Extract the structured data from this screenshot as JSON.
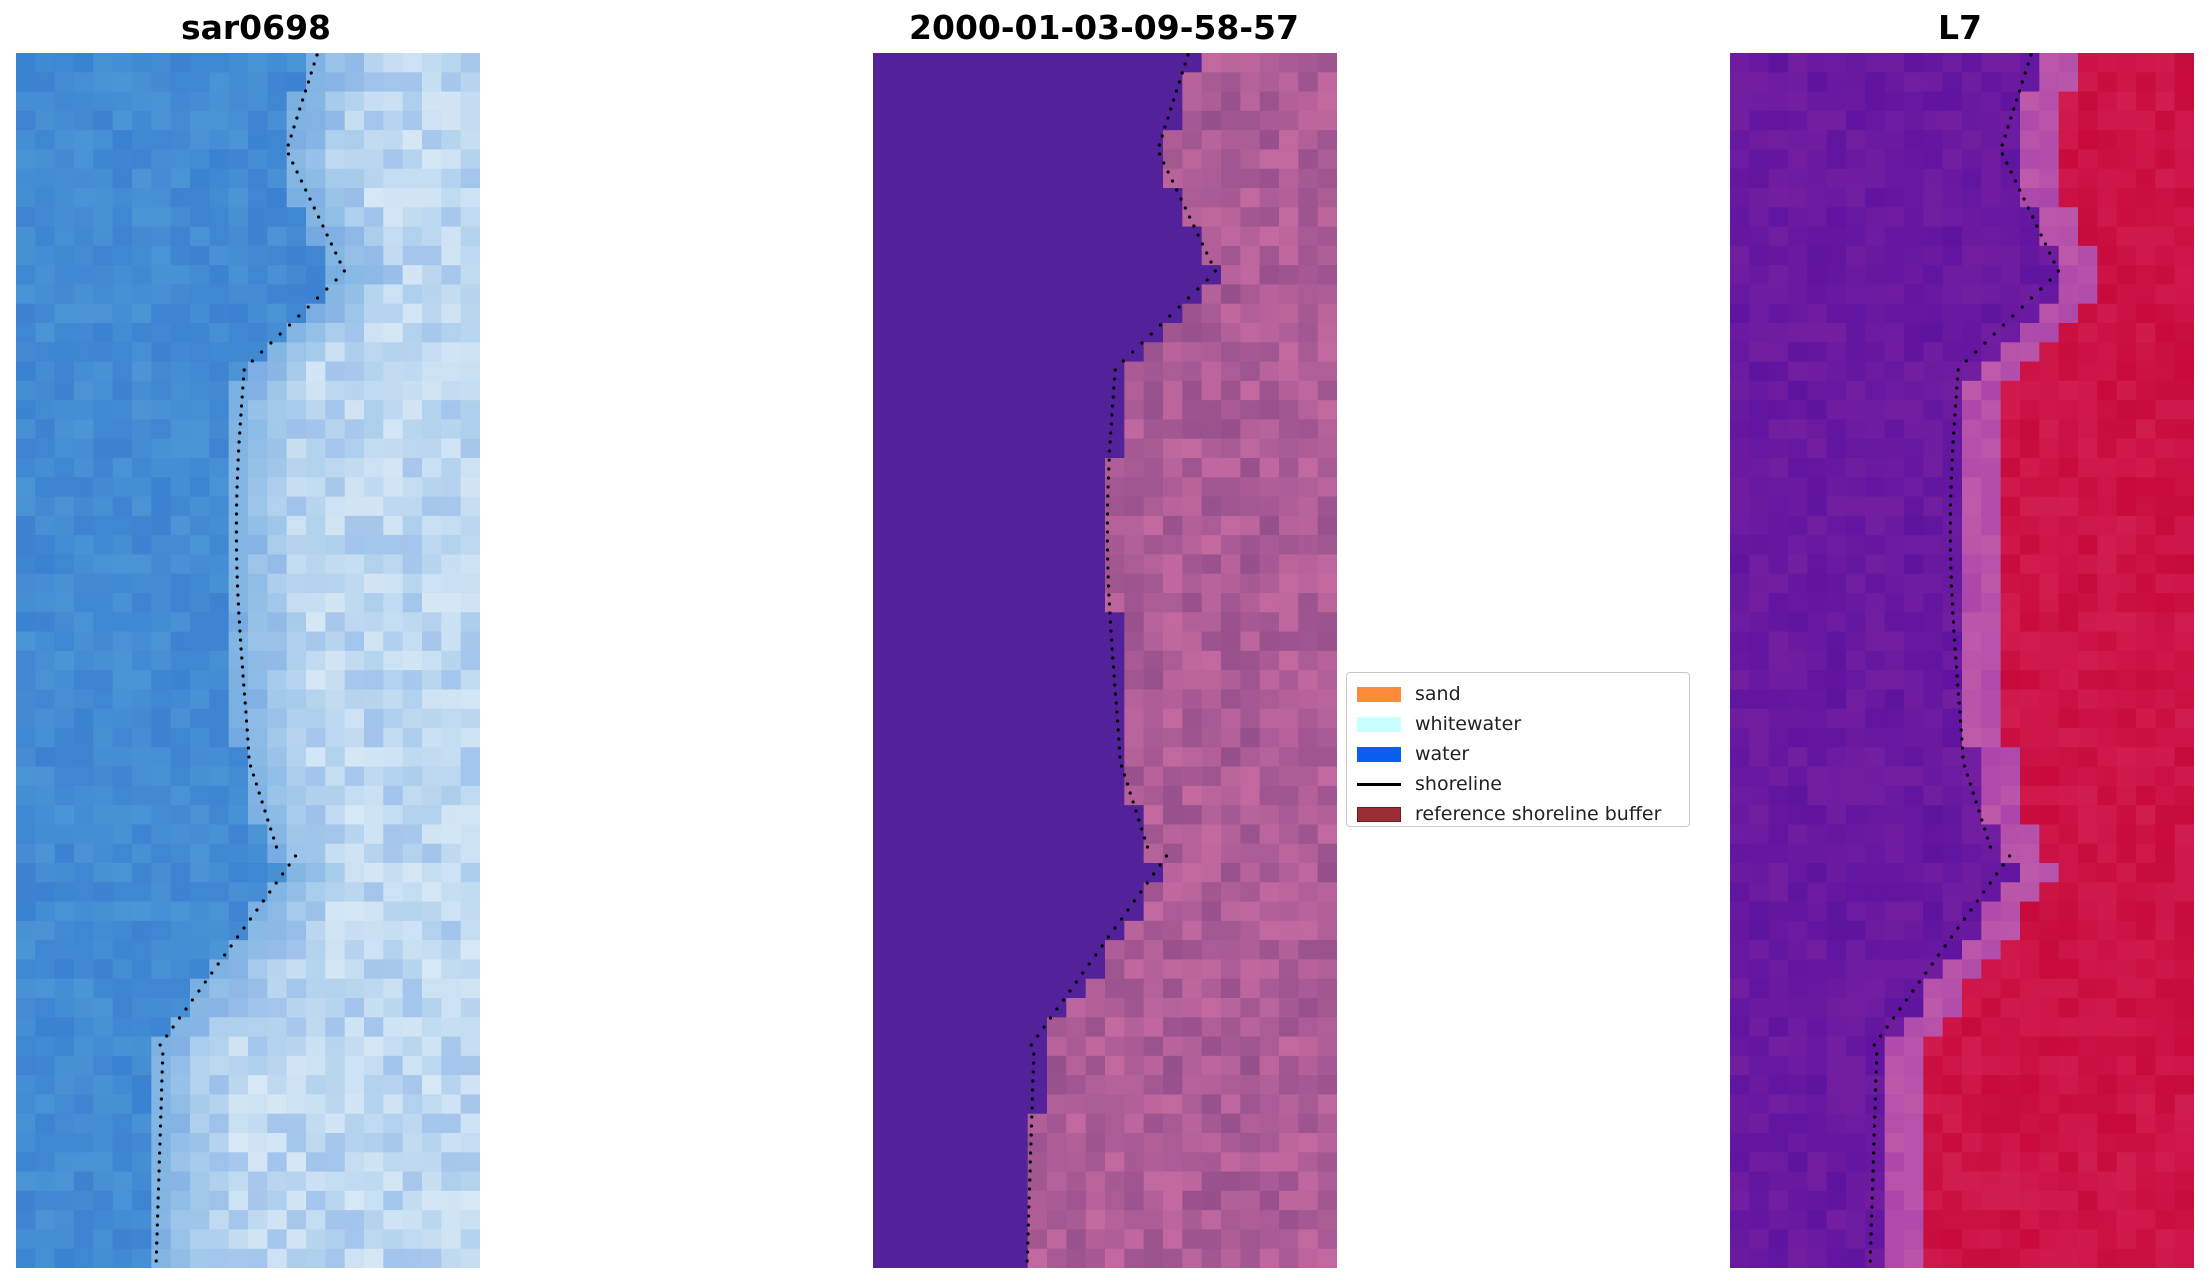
{
  "panels": [
    {
      "title": "sar0698",
      "palette": "rgb"
    },
    {
      "title": "2000-01-03-09-58-57",
      "palette": "classified"
    },
    {
      "title": "L7",
      "palette": "mndwi"
    }
  ],
  "legend": {
    "items": [
      {
        "label": "sand",
        "color": "#ff8a3a"
      },
      {
        "label": "whitewater",
        "color": "#c8ffff"
      },
      {
        "label": "water",
        "color": "#0a5ff0"
      },
      {
        "label": "shoreline",
        "color": "#000000",
        "kind": "line"
      },
      {
        "label": "reference shoreline buffer",
        "color": "#9b2d35"
      }
    ]
  },
  "colors": {
    "water_rgb": "#3f86d6",
    "surf_rgb": "#dbe9f5",
    "water_class": "#53229a",
    "land_class": "#a45a92",
    "water_index": "#7a25a6",
    "land_index": "#c8103c"
  }
}
